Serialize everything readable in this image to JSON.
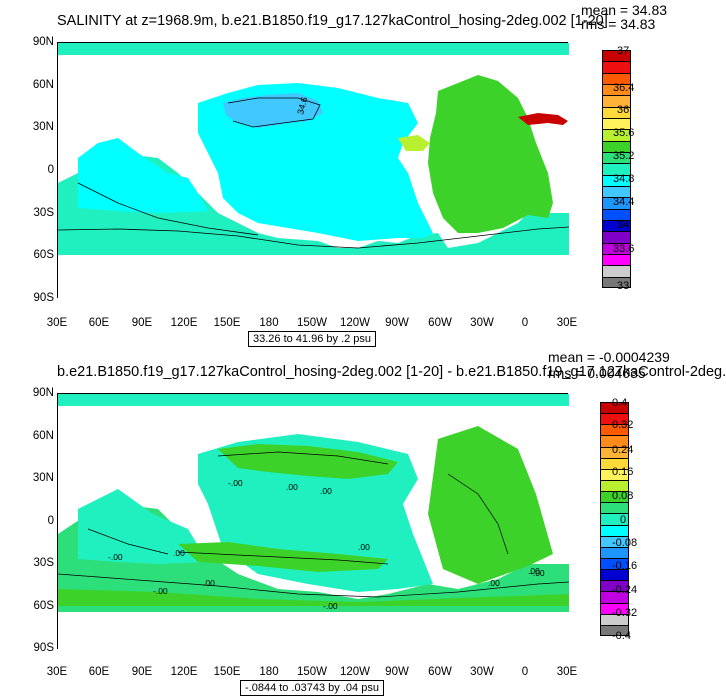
{
  "panels": [
    {
      "title": "SALINITY at z=1968.9m, b.e21.B1850.f19_g17.127kaControl_hosing-2deg.002 [1-20]",
      "mean_text": "mean = 34.83",
      "rms_text": "rms = 34.83",
      "range_text": "33.26 to 41.96 by .2 psu",
      "lat_labels": [
        "90N",
        "60N",
        "30N",
        "0",
        "30S",
        "60S",
        "90S"
      ],
      "lon_labels": [
        "30E",
        "60E",
        "90E",
        "120E",
        "150E",
        "180",
        "150W",
        "120W",
        "90W",
        "60W",
        "30W",
        "0",
        "30E"
      ],
      "contour_labels": [
        "34.6"
      ],
      "colorbar": {
        "labels": [
          "37",
          "36.4",
          "36",
          "35.6",
          "35.2",
          "34.8",
          "34.4",
          "34",
          "33.6",
          "33"
        ],
        "colors": [
          "#c80000",
          "#ee1010",
          "#ff5a00",
          "#ff8c1a",
          "#ffb238",
          "#ffd83a",
          "#fff25a",
          "#b8f030",
          "#3cd22a",
          "#2ddf7a",
          "#20f0c0",
          "#00ffff",
          "#40c8ff",
          "#1e96ff",
          "#0050ff",
          "#0000d0",
          "#8000c8",
          "#c000e0",
          "#ff00ff",
          "#cccccc",
          "#787878"
        ]
      }
    },
    {
      "title": "b.e21.B1850.f19_g17.127kaControl_hosing-2deg.002 [1-20] - b.e21.B1850.f19_g17.127kaControl-2deg.",
      "mean_text": "mean = -0.0004239",
      "rms_text": "rms = 0.004035",
      "range_text": "-.0844 to .03743 by .04 psu",
      "lat_labels": [
        "90N",
        "60N",
        "30N",
        "0",
        "30S",
        "60S",
        "90S"
      ],
      "lon_labels": [
        "30E",
        "60E",
        "90E",
        "120E",
        "150E",
        "180",
        "150W",
        "120W",
        "90W",
        "60W",
        "30W",
        "0",
        "30E"
      ],
      "contour_labels": [
        "-.00",
        ".00",
        ".00",
        "-.00",
        ".00",
        "-.00",
        ".00",
        "-.00",
        ".00",
        ".00",
        ".00",
        "-.00"
      ],
      "colorbar": {
        "labels": [
          "0.4",
          "0.32",
          "0.24",
          "0.16",
          "0.08",
          "0",
          "-0.08",
          "-0.16",
          "-0.24",
          "-0.32",
          "-0.4"
        ],
        "colors": [
          "#c80000",
          "#ee1010",
          "#ff5a00",
          "#ff8c1a",
          "#ffb238",
          "#ffd83a",
          "#fff25a",
          "#b8f030",
          "#3cd22a",
          "#2ddf7a",
          "#20f0c0",
          "#00ffff",
          "#40c8ff",
          "#1e96ff",
          "#0050ff",
          "#0000d0",
          "#8000c8",
          "#c000e0",
          "#ff00ff",
          "#cccccc",
          "#787878"
        ]
      }
    }
  ],
  "colors": {
    "land": "#ffffff",
    "ocean_cyan": "#00ffff",
    "ocean_teal": "#20f0c0",
    "ocean_lightblue": "#40c8ff",
    "ocean_green": "#3cd22a",
    "atlantic_green": "#3cd22a",
    "hot_red": "#c80000",
    "contour": "#000000"
  }
}
